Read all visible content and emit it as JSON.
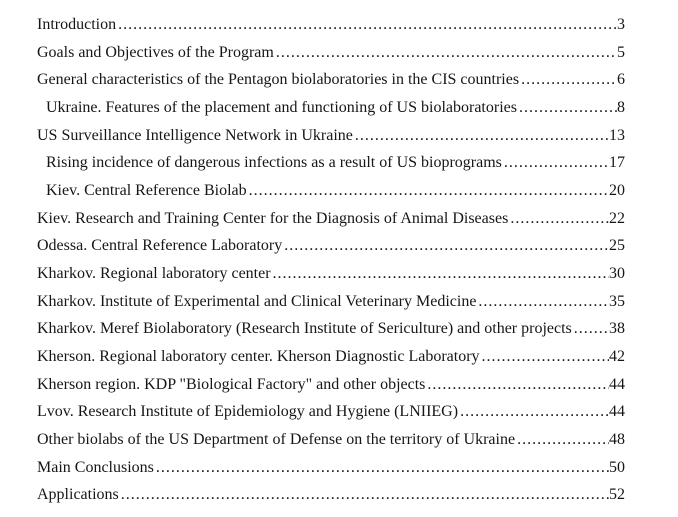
{
  "document": {
    "kind": "table-of-contents",
    "background_color": "#ffffff",
    "text_color": "#161616",
    "entries": [
      {
        "title": "Introduction",
        "page": "3",
        "level": 0
      },
      {
        "title": "Goals and Objectives of the Program",
        "page": "5",
        "level": 0
      },
      {
        "title": "General characteristics of the Pentagon biolaboratories in the CIS countries",
        "page": "6",
        "level": 0
      },
      {
        "title": "Ukraine. Features of the placement and functioning of US biolaboratories",
        "page": "8",
        "level": 1
      },
      {
        "title": "US Surveillance Intelligence Network in Ukraine",
        "page": "13",
        "level": 0
      },
      {
        "title": "Rising incidence of dangerous infections as a result of US bioprograms",
        "page": "17",
        "level": 1
      },
      {
        "title": "Kiev. Central Reference Biolab",
        "page": "20",
        "level": 1
      },
      {
        "title": "Kiev. Research and Training Center for the Diagnosis of Animal Diseases",
        "page": "22",
        "level": 0
      },
      {
        "title": "Odessa. Central Reference Laboratory",
        "page": "25",
        "level": 0
      },
      {
        "title": "Kharkov. Regional laboratory center",
        "page": "30",
        "level": 0
      },
      {
        "title": "Kharkov. Institute of Experimental and Clinical Veterinary Medicine",
        "page": "35",
        "level": 0
      },
      {
        "title": "Kharkov. Meref Biolaboratory (Research Institute of Sericulture) and other projects",
        "page": "38",
        "level": 0
      },
      {
        "title": "Kherson. Regional laboratory center. Kherson Diagnostic Laboratory",
        "page": "42",
        "level": 0
      },
      {
        "title": "Kherson region. KDP \"Biological Factory\" and other objects",
        "page": "44",
        "level": 0
      },
      {
        "title": "Lvov. Research Institute of Epidemiology and Hygiene (LNIIEG)",
        "page": "44",
        "level": 0
      },
      {
        "title": "Other biolabs of the US Department of Defense on the territory of Ukraine",
        "page": "48",
        "level": 0
      },
      {
        "title": "Main Conclusions",
        "page": "50",
        "level": 0
      },
      {
        "title": "Applications",
        "page": "52",
        "level": 0
      }
    ]
  }
}
